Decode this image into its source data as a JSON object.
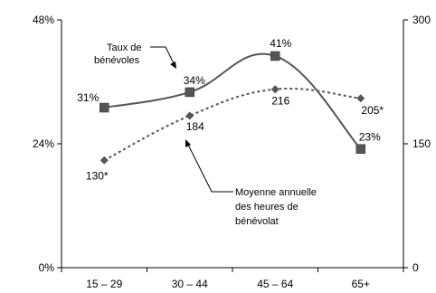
{
  "chart_data": {
    "type": "line",
    "categories": [
      "15 – 29",
      "30 – 44",
      "45 – 64",
      "65+"
    ],
    "left_axis": {
      "ticks": [
        "0%",
        "24%",
        "48%"
      ],
      "ylim": [
        0,
        48
      ]
    },
    "right_axis": {
      "ticks": [
        "0",
        "150",
        "300"
      ],
      "ylim": [
        0,
        300
      ]
    },
    "grid": false,
    "series": [
      {
        "key": "rate",
        "axis": "left",
        "values": [
          31,
          34,
          41,
          23
        ],
        "labels": [
          "31%",
          "34%",
          "41%",
          "23%"
        ],
        "style": "solid",
        "marker": "square",
        "color": "#555555"
      },
      {
        "key": "hours",
        "axis": "right",
        "values": [
          130,
          184,
          216,
          205
        ],
        "labels": [
          "130*",
          "184",
          "216",
          "205*"
        ],
        "style": "dotted",
        "marker": "diamond",
        "color": "#555555"
      }
    ],
    "annotations": [
      {
        "target": "rate",
        "lines": [
          "Taux de",
          "bénévoles"
        ]
      },
      {
        "target": "hours",
        "lines": [
          "Moyenne annuelle",
          "des heures de",
          "bénévolat"
        ]
      }
    ]
  }
}
